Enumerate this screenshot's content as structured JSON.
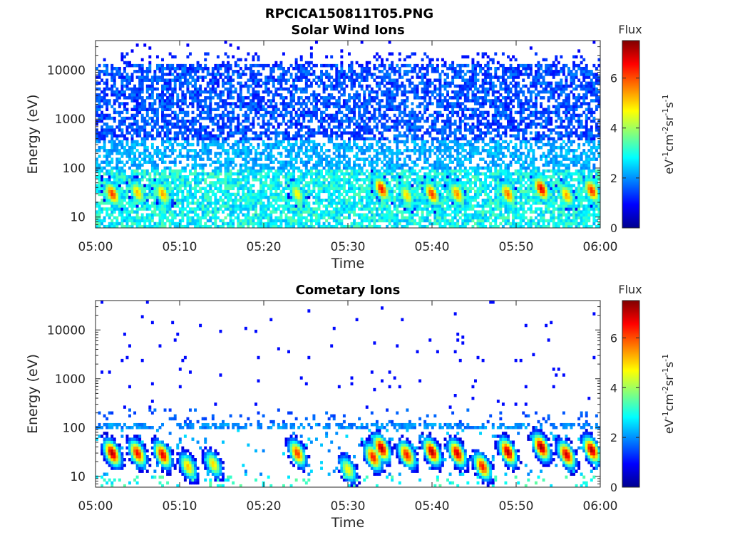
{
  "figure_title": "RPCICA150811T05.PNG",
  "colorbar_label": "Flux",
  "colorbar_unit_parts": [
    "eV",
    "-1",
    "cm",
    "-2",
    "sr",
    "-1",
    "s",
    "-1"
  ],
  "colormap": [
    "#00008f",
    "#0000ff",
    "#0080ff",
    "#00ffff",
    "#80ff80",
    "#ffff00",
    "#ff8000",
    "#ff0000",
    "#800000"
  ],
  "chart_data": [
    {
      "type": "heatmap",
      "title": "Solar Wind Ions",
      "xlabel": "Time",
      "ylabel": "Energy (eV)",
      "x_ticks": [
        "05:00",
        "05:10",
        "05:20",
        "05:30",
        "05:40",
        "05:50",
        "06:00"
      ],
      "x_range": [
        "05:00",
        "06:00"
      ],
      "y_scale": "log",
      "y_ticks": [
        "10",
        "100",
        "1000",
        "10000"
      ],
      "y_range": [
        6,
        40000
      ],
      "color_range": [
        0,
        7.5
      ],
      "color_ticks": [
        "0",
        "2",
        "4",
        "6"
      ],
      "background_flux": "widespread blue/cyan counts from ~10 eV to ~20000 eV, denser and greener below 100 eV",
      "peaks": [
        {
          "time": "05:02",
          "energy_eV": 30,
          "flux": 6.2
        },
        {
          "time": "05:05",
          "energy_eV": 32,
          "flux": 5.2
        },
        {
          "time": "05:08",
          "energy_eV": 30,
          "flux": 5.4
        },
        {
          "time": "05:24",
          "energy_eV": 30,
          "flux": 4.8
        },
        {
          "time": "05:34",
          "energy_eV": 38,
          "flux": 6.5
        },
        {
          "time": "05:37",
          "energy_eV": 28,
          "flux": 5.0
        },
        {
          "time": "05:40",
          "energy_eV": 30,
          "flux": 6.2
        },
        {
          "time": "05:43",
          "energy_eV": 30,
          "flux": 5.6
        },
        {
          "time": "05:49",
          "energy_eV": 30,
          "flux": 5.8
        },
        {
          "time": "05:53",
          "energy_eV": 38,
          "flux": 6.8
        },
        {
          "time": "05:56",
          "energy_eV": 28,
          "flux": 5.4
        },
        {
          "time": "05:59",
          "energy_eV": 35,
          "flux": 6.3
        }
      ]
    },
    {
      "type": "heatmap",
      "title": "Cometary Ions",
      "xlabel": "Time",
      "ylabel": "Energy (eV)",
      "x_ticks": [
        "05:00",
        "05:10",
        "05:20",
        "05:30",
        "05:40",
        "05:50",
        "06:00"
      ],
      "x_range": [
        "05:00",
        "06:00"
      ],
      "y_scale": "log",
      "y_ticks": [
        "10",
        "100",
        "1000",
        "10000"
      ],
      "y_range": [
        6,
        40000
      ],
      "color_range": [
        0,
        7.5
      ],
      "color_ticks": [
        "0",
        "2",
        "4",
        "6"
      ],
      "background_flux": "sparse cyan band at ~100-130 eV, scattered blue points above 200 eV",
      "peaks": [
        {
          "time": "05:02",
          "energy_eV": 30,
          "flux": 7.2
        },
        {
          "time": "05:05",
          "energy_eV": 30,
          "flux": 6.6
        },
        {
          "time": "05:08",
          "energy_eV": 28,
          "flux": 6.8
        },
        {
          "time": "05:11",
          "energy_eV": 16,
          "flux": 5.2
        },
        {
          "time": "05:14",
          "energy_eV": 18,
          "flux": 5.0
        },
        {
          "time": "05:24",
          "energy_eV": 30,
          "flux": 6.2
        },
        {
          "time": "05:30",
          "energy_eV": 14,
          "flux": 4.8
        },
        {
          "time": "05:33",
          "energy_eV": 25,
          "flux": 6.5
        },
        {
          "time": "05:34",
          "energy_eV": 38,
          "flux": 7.2
        },
        {
          "time": "05:37",
          "energy_eV": 28,
          "flux": 6.5
        },
        {
          "time": "05:40",
          "energy_eV": 32,
          "flux": 7.2
        },
        {
          "time": "05:43",
          "energy_eV": 30,
          "flux": 7.0
        },
        {
          "time": "05:46",
          "energy_eV": 16,
          "flux": 6.5
        },
        {
          "time": "05:49",
          "energy_eV": 32,
          "flux": 7.2
        },
        {
          "time": "05:53",
          "energy_eV": 40,
          "flux": 7.4
        },
        {
          "time": "05:56",
          "energy_eV": 28,
          "flux": 7.0
        },
        {
          "time": "05:59",
          "energy_eV": 35,
          "flux": 7.2
        }
      ]
    }
  ]
}
